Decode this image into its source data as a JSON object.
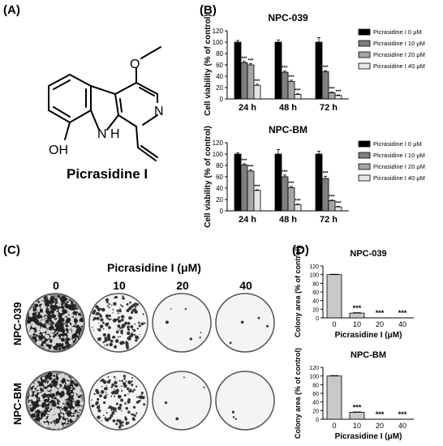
{
  "panels": {
    "a": "(A)",
    "b": "(B)",
    "c": "(C)",
    "d": "(D)"
  },
  "molecule": {
    "name": "Picrasidine I",
    "atom_oh": "OH",
    "atom_nh": "N",
    "atom_h": "H",
    "atom_n": "N",
    "atom_o": "O"
  },
  "chart_data": [
    {
      "id": "b_top",
      "type": "bar",
      "title": "NPC-039",
      "ylabel": "Cell viability (% of control)",
      "categories": [
        "24 h",
        "48 h",
        "72 h"
      ],
      "yticks": [
        0,
        10,
        20,
        30,
        40,
        50,
        60,
        70,
        80,
        90,
        100,
        110,
        120
      ],
      "ylim": [
        0,
        120
      ],
      "series": [
        {
          "name": "Picrasidine I 0 μM",
          "color": "#000000",
          "values": [
            100,
            100,
            100
          ],
          "err": [
            3,
            4,
            8
          ],
          "sig": [
            "",
            "",
            ""
          ]
        },
        {
          "name": "Picrasidine I 10 μM",
          "color": "#7f7f7f",
          "values": [
            64,
            47,
            48
          ],
          "err": [
            2,
            2,
            2
          ],
          "sig": [
            "***",
            "***",
            "***"
          ]
        },
        {
          "name": "Picrasidine I 20 μM",
          "color": "#a6a6a6",
          "values": [
            60,
            31,
            11
          ],
          "err": [
            2,
            2,
            1
          ],
          "sig": [
            "***",
            "***",
            "***"
          ]
        },
        {
          "name": "Picrasidine I 40 μM",
          "color": "#e6e6e6",
          "values": [
            24,
            8,
            6
          ],
          "err": [
            2,
            1,
            1
          ],
          "sig": [
            "***",
            "***",
            "***"
          ]
        }
      ],
      "legend": "right"
    },
    {
      "id": "b_bottom",
      "type": "bar",
      "title": "NPC-BM",
      "ylabel": "Cell viability (% of control)",
      "categories": [
        "24 h",
        "48 h",
        "72 h"
      ],
      "yticks": [
        0,
        10,
        20,
        30,
        40,
        50,
        60,
        70,
        80,
        90,
        100,
        110,
        120
      ],
      "ylim": [
        0,
        120
      ],
      "series": [
        {
          "name": "Picrasidine I 0 μM",
          "color": "#000000",
          "values": [
            100,
            100,
            100
          ],
          "err": [
            2,
            8,
            5
          ],
          "sig": [
            "",
            "",
            ""
          ]
        },
        {
          "name": "Picrasidine I 10 μM",
          "color": "#7f7f7f",
          "values": [
            81,
            60,
            57
          ],
          "err": [
            2,
            3,
            4
          ],
          "sig": [
            "***",
            "***",
            "***"
          ]
        },
        {
          "name": "Picrasidine I 20 μM",
          "color": "#a6a6a6",
          "values": [
            70,
            41,
            18
          ],
          "err": [
            2,
            2,
            1
          ],
          "sig": [
            "***",
            "***",
            "***"
          ]
        },
        {
          "name": "Picrasidine I 40 μM",
          "color": "#e6e6e6",
          "values": [
            36,
            11,
            7
          ],
          "err": [
            1,
            1,
            1
          ],
          "sig": [
            "***",
            "***",
            "***"
          ]
        }
      ],
      "legend": "right"
    },
    {
      "id": "d_top",
      "type": "bar",
      "title": "NPC-039",
      "xlabel": "Picrasidine I (μM)",
      "ylabel": "Colony area (% of control)",
      "categories": [
        "0",
        "10",
        "20",
        "40"
      ],
      "yticks": [
        0,
        10,
        20,
        30,
        40,
        50,
        60,
        70,
        80,
        90,
        100,
        110,
        120
      ],
      "ylim": [
        0,
        120
      ],
      "values": [
        100,
        11,
        0,
        0
      ],
      "err": [
        1,
        1,
        0,
        0
      ],
      "sig": [
        "",
        "***",
        "***",
        "***"
      ],
      "color": "#c8c8c8"
    },
    {
      "id": "d_bottom",
      "type": "bar",
      "title": "NPC-BM",
      "xlabel": "Picrasidine I (μM)",
      "ylabel": "Colony area (% of control)",
      "categories": [
        "0",
        "10",
        "20",
        "40"
      ],
      "yticks": [
        0,
        10,
        20,
        30,
        40,
        50,
        60,
        70,
        80,
        90,
        100,
        110,
        120
      ],
      "ylim": [
        0,
        120
      ],
      "values": [
        100,
        16,
        0,
        0
      ],
      "err": [
        1,
        1,
        0,
        0
      ],
      "sig": [
        "",
        "***",
        "***",
        "***"
      ],
      "color": "#c8c8c8"
    }
  ],
  "colony": {
    "title": "Picrasidine I (μM)",
    "columns": [
      "0",
      "10",
      "20",
      "40"
    ],
    "rows": [
      "NPC-039",
      "NPC-BM"
    ]
  }
}
